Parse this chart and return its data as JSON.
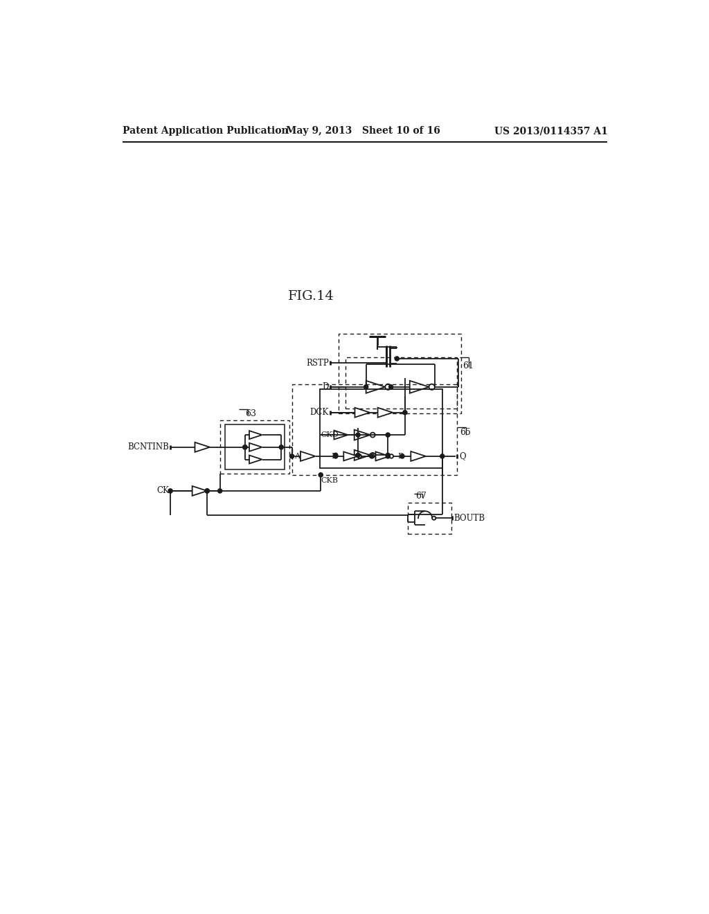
{
  "title": "FIG.14",
  "header_left": "Patent Application Publication",
  "header_mid": "May 9, 2013   Sheet 10 of 16",
  "header_right": "US 2013/0114357 A1",
  "bg_color": "#ffffff",
  "line_color": "#1a1a1a",
  "text_color": "#1a1a1a"
}
